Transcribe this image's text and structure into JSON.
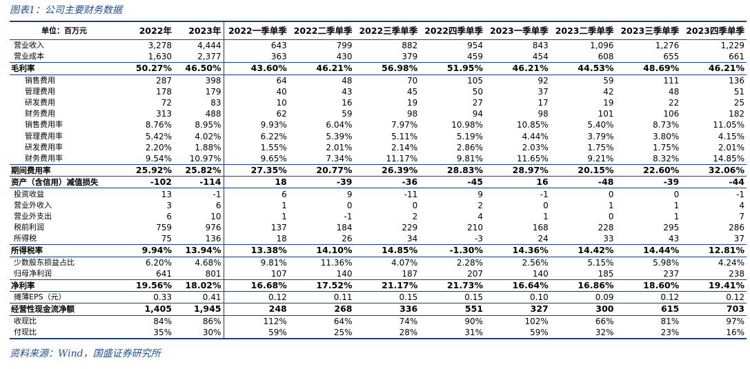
{
  "header": {
    "title": "图表1：公司主要财务数据"
  },
  "table": {
    "columns": [
      "单位：百万元",
      "2022年",
      "2023年",
      "2022一季单季",
      "2022二季单季",
      "2022三季单季",
      "2022四季单季",
      "2023一季单季",
      "2023二季单季",
      "2023三季单季",
      "2023四季单季"
    ],
    "rows": [
      {
        "label": "营业收入",
        "style": "normal",
        "cells": [
          "3,278",
          "4,444",
          "643",
          "799",
          "882",
          "954",
          "843",
          "1,096",
          "1,276",
          "1,229"
        ]
      },
      {
        "label": "营业成本",
        "style": "normal",
        "cells": [
          "1,630",
          "2,377",
          "363",
          "430",
          "379",
          "459",
          "454",
          "608",
          "655",
          "661"
        ]
      },
      {
        "label": "毛利率",
        "style": "bold",
        "cells": [
          "50.27%",
          "46.50%",
          "43.60%",
          "46.21%",
          "56.98%",
          "51.95%",
          "46.21%",
          "44.53%",
          "48.69%",
          "46.21%"
        ]
      },
      {
        "label": "销售费用",
        "style": "sub",
        "cells": [
          "287",
          "398",
          "64",
          "48",
          "70",
          "105",
          "92",
          "59",
          "111",
          "136"
        ]
      },
      {
        "label": "管理费用",
        "style": "sub",
        "cells": [
          "178",
          "179",
          "40",
          "43",
          "45",
          "50",
          "37",
          "42",
          "48",
          "51"
        ]
      },
      {
        "label": "研发费用",
        "style": "sub",
        "cells": [
          "72",
          "83",
          "10",
          "16",
          "19",
          "27",
          "17",
          "19",
          "22",
          "25"
        ]
      },
      {
        "label": "财务费用",
        "style": "sub",
        "cells": [
          "313",
          "488",
          "62",
          "59",
          "98",
          "94",
          "98",
          "101",
          "106",
          "182"
        ]
      },
      {
        "label": "销售费用率",
        "style": "sub",
        "cells": [
          "8.76%",
          "8.95%",
          "9.93%",
          "6.04%",
          "7.97%",
          "10.98%",
          "10.85%",
          "5.40%",
          "8.73%",
          "11.05%"
        ]
      },
      {
        "label": "管理费用率",
        "style": "sub",
        "cells": [
          "5.42%",
          "4.02%",
          "6.22%",
          "5.39%",
          "5.11%",
          "5.19%",
          "4.44%",
          "3.79%",
          "3.80%",
          "4.15%"
        ]
      },
      {
        "label": "研发费用率",
        "style": "sub",
        "cells": [
          "2.20%",
          "1.88%",
          "1.55%",
          "2.01%",
          "2.14%",
          "2.86%",
          "2.03%",
          "1.75%",
          "1.75%",
          "2.01%"
        ]
      },
      {
        "label": "财务费用率",
        "style": "sub",
        "cells": [
          "9.54%",
          "10.97%",
          "9.65%",
          "7.34%",
          "11.17%",
          "9.81%",
          "11.65%",
          "9.21%",
          "8.32%",
          "14.85%"
        ]
      },
      {
        "label": "期间费用率",
        "style": "bold",
        "cells": [
          "25.92%",
          "25.82%",
          "27.35%",
          "20.77%",
          "26.39%",
          "28.83%",
          "28.97%",
          "20.15%",
          "22.60%",
          "32.06%"
        ]
      },
      {
        "label": "资产（含信用）减值损失",
        "style": "bold",
        "cells": [
          "-102",
          "-114",
          "18",
          "-39",
          "-36",
          "-45",
          "16",
          "-48",
          "-39",
          "-44"
        ]
      },
      {
        "label": "投资收益",
        "style": "normal",
        "cells": [
          "13",
          "-1",
          "6",
          "9",
          "-11",
          "9",
          "-1",
          "0",
          "0",
          "-1"
        ]
      },
      {
        "label": "营业外收入",
        "style": "normal",
        "cells": [
          "3",
          "6",
          "1",
          "0",
          "0",
          "2",
          "0",
          "1",
          "1",
          "4"
        ]
      },
      {
        "label": "营业外支出",
        "style": "normal",
        "cells": [
          "6",
          "10",
          "1",
          "-1",
          "2",
          "4",
          "1",
          "0",
          "1",
          "7"
        ]
      },
      {
        "label": "税前利润",
        "style": "normal",
        "cells": [
          "759",
          "976",
          "137",
          "184",
          "229",
          "210",
          "168",
          "228",
          "295",
          "286"
        ]
      },
      {
        "label": "所得税",
        "style": "normal",
        "cells": [
          "75",
          "136",
          "18",
          "26",
          "34",
          "-3",
          "24",
          "33",
          "43",
          "37"
        ]
      },
      {
        "label": "所得税率",
        "style": "bold",
        "cells": [
          "9.94%",
          "13.94%",
          "13.38%",
          "14.10%",
          "14.85%",
          "-1.30%",
          "14.36%",
          "14.42%",
          "14.44%",
          "12.81%"
        ]
      },
      {
        "label": "少数股东损益占比",
        "style": "normal",
        "cells": [
          "6.20%",
          "4.68%",
          "9.81%",
          "11.36%",
          "4.07%",
          "2.28%",
          "2.56%",
          "5.15%",
          "5.98%",
          "4.24%"
        ]
      },
      {
        "label": "归母净利润",
        "style": "normal",
        "cells": [
          "641",
          "801",
          "107",
          "140",
          "187",
          "207",
          "140",
          "185",
          "237",
          "238"
        ]
      },
      {
        "label": "净利率",
        "style": "bold",
        "cells": [
          "19.56%",
          "18.02%",
          "16.68%",
          "17.52%",
          "21.17%",
          "21.73%",
          "16.64%",
          "16.86%",
          "18.60%",
          "19.41%"
        ]
      },
      {
        "label": "摊薄EPS（元）",
        "style": "normal",
        "cells": [
          "0.33",
          "0.41",
          "0.12",
          "0.11",
          "0.15",
          "0.15",
          "0.10",
          "0.09",
          "0.12",
          "0.12"
        ]
      },
      {
        "label": "经营性现金流净额",
        "style": "bold",
        "cells": [
          "1,405",
          "1,945",
          "248",
          "268",
          "336",
          "551",
          "327",
          "300",
          "615",
          "703"
        ]
      },
      {
        "label": "收现比",
        "style": "normal",
        "cells": [
          "84%",
          "86%",
          "112%",
          "64%",
          "74%",
          "90%",
          "102%",
          "66%",
          "81%",
          "97%"
        ]
      },
      {
        "label": "付现比",
        "style": "normal",
        "cells": [
          "35%",
          "30%",
          "59%",
          "25%",
          "28%",
          "31%",
          "59%",
          "32%",
          "23%",
          "16%"
        ]
      }
    ]
  },
  "footer": {
    "source": "资料来源：Wind，国盛证券研究所"
  }
}
